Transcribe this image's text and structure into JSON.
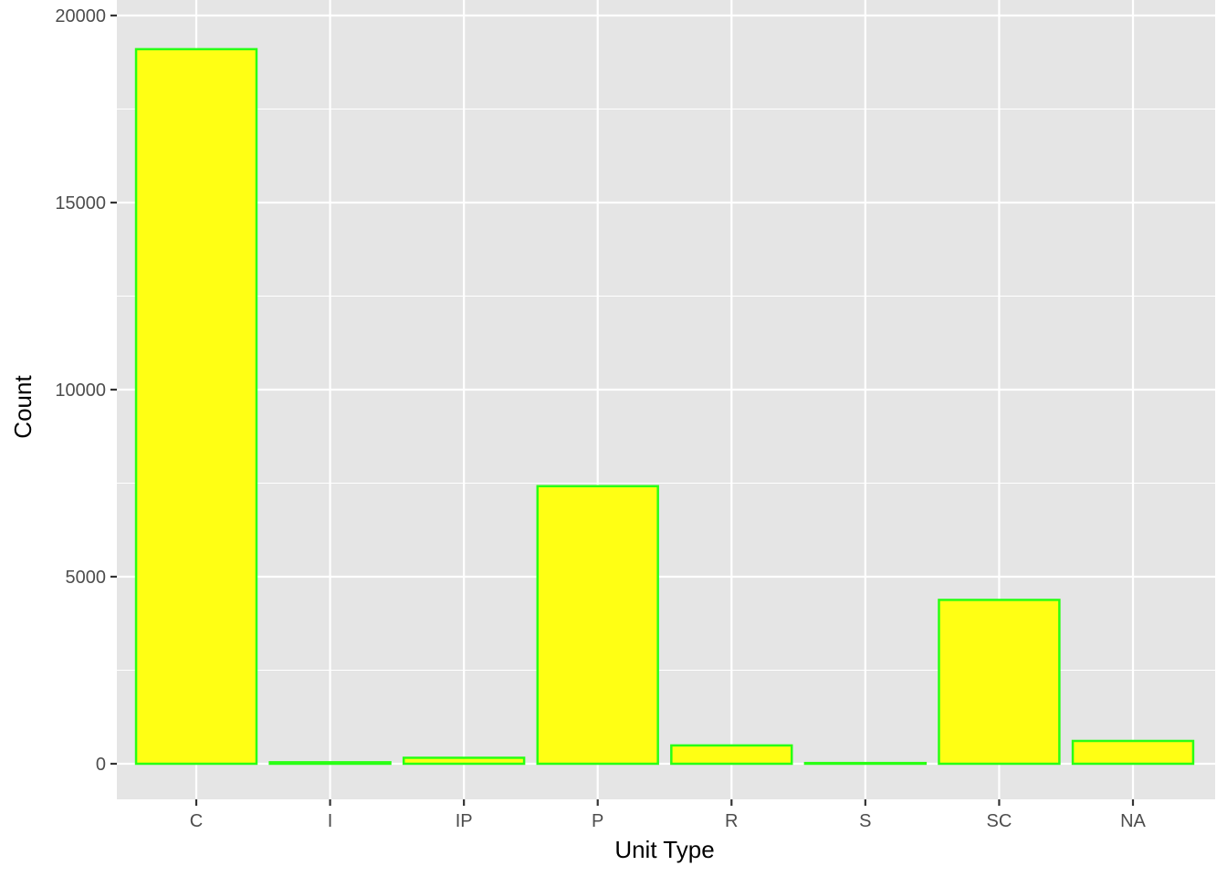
{
  "chart_data": {
    "type": "bar",
    "title": "",
    "xlabel": "Unit Type",
    "ylabel": "Count",
    "categories": [
      "C",
      "I",
      "IP",
      "P",
      "R",
      "S",
      "SC",
      "NA"
    ],
    "values": [
      19100,
      40,
      160,
      7420,
      490,
      20,
      4380,
      610
    ],
    "ylim": [
      -930,
      20000
    ],
    "yticks": [
      "0",
      "5000",
      "10000",
      "15000",
      "20000"
    ],
    "ytick_values": [
      0,
      5000,
      10000,
      15000,
      20000
    ],
    "grid": true,
    "legend": "none"
  },
  "colors": {
    "panel_background": "#e5e5e5",
    "grid_line": "#ffffff",
    "bar_fill": "#ffff14",
    "bar_outline": "#29ff14",
    "tick_text": "#4d4d4d",
    "axis_title": "#000000"
  }
}
